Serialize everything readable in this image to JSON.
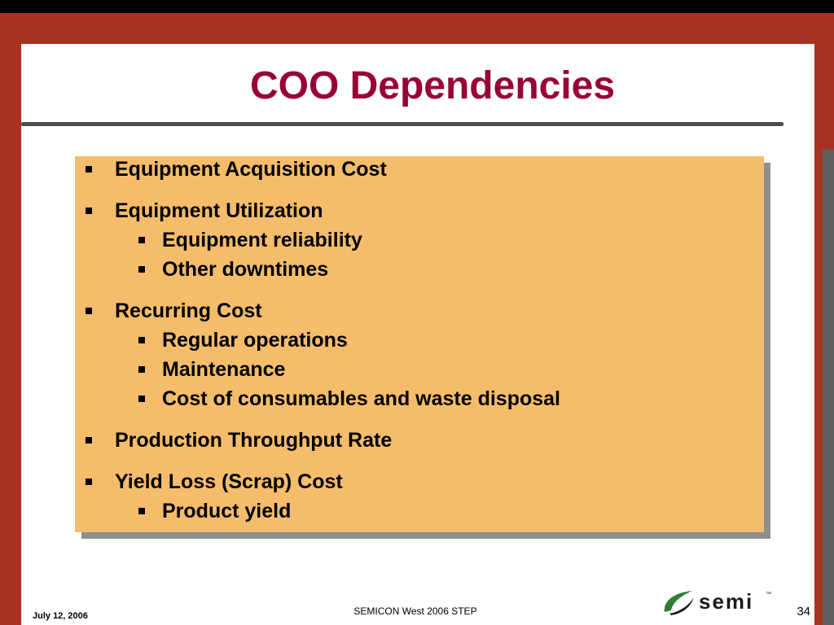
{
  "slide": {
    "title": "COO Dependencies",
    "bullets": [
      {
        "level": 1,
        "text": "Equipment Acquisition Cost",
        "gap_before": false
      },
      {
        "level": 1,
        "text": "Equipment Utilization",
        "gap_before": true
      },
      {
        "level": 2,
        "text": "Equipment reliability",
        "gap_before": false
      },
      {
        "level": 2,
        "text": "Other downtimes",
        "gap_before": false
      },
      {
        "level": 1,
        "text": "Recurring Cost",
        "gap_before": true
      },
      {
        "level": 2,
        "text": "Regular operations",
        "gap_before": false
      },
      {
        "level": 2,
        "text": "Maintenance",
        "gap_before": false
      },
      {
        "level": 2,
        "text": "Cost of consumables and waste disposal",
        "gap_before": false
      },
      {
        "level": 1,
        "text": "Production Throughput Rate",
        "gap_before": true
      },
      {
        "level": 1,
        "text": "Yield Loss (Scrap) Cost",
        "gap_before": true
      },
      {
        "level": 2,
        "text": "Product yield",
        "gap_before": false
      }
    ]
  },
  "footer": {
    "date": "July 12, 2006",
    "event": "SEMICON West 2006 STEP",
    "page_number": "34",
    "logo_text": "semi",
    "logo_icon": "semi-swoosh-logo"
  },
  "colors": {
    "title": "#990033",
    "frame": "#a83222",
    "box_fill": "#f5bd6b",
    "box_shadow": "#8e8e8e",
    "logo_green": "#2e7d32"
  }
}
